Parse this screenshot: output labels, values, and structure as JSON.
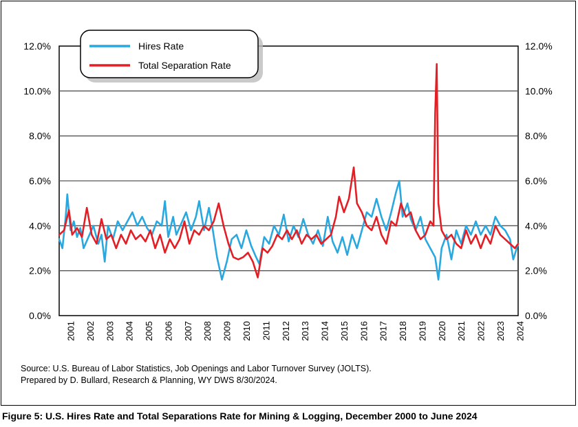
{
  "caption": "Figure 5: U.S. Hires Rate and Total Separations Rate for Mining & Logging, December 2000 to June 2024",
  "source_lines": [
    "Source: U.S. Bureau of Labor Statistics, Job Openings and Labor Turnover Survey (JOLTS).",
    "Prepared by D. Bullard, Research & Planning, WY DWS 8/30/2024."
  ],
  "chart_data": {
    "type": "line",
    "title": "",
    "xlabel": "",
    "ylabel": "",
    "ylim": [
      0,
      12
    ],
    "yticks": [
      "0.0%",
      "2.0%",
      "4.0%",
      "6.0%",
      "8.0%",
      "10.0%",
      "12.0%"
    ],
    "right_axis_duplicate": true,
    "grid": "horizontal",
    "legend_placement": "top-left",
    "x_range": [
      "2000-12",
      "2024-06"
    ],
    "x_tick_labels": [
      "2001",
      "2002",
      "2003",
      "2004",
      "2005",
      "2006",
      "2007",
      "2008",
      "2009",
      "2010",
      "2011",
      "2012",
      "2013",
      "2014",
      "2015",
      "2016",
      "2017",
      "2018",
      "2019",
      "2020",
      "2021",
      "2022",
      "2023",
      "2024"
    ],
    "series_colors": {
      "hires": "#29a8e0",
      "separations": "#e31e24"
    },
    "series": [
      {
        "name": "Hires Rate",
        "color": "#29a8e0",
        "points": [
          [
            "2000-12",
            3.4
          ],
          [
            "2001-02",
            3.0
          ],
          [
            "2001-04",
            4.4
          ],
          [
            "2001-05",
            5.4
          ],
          [
            "2001-07",
            3.8
          ],
          [
            "2001-09",
            4.2
          ],
          [
            "2001-11",
            3.5
          ],
          [
            "2002-01",
            3.9
          ],
          [
            "2002-03",
            3.0
          ],
          [
            "2002-06",
            3.5
          ],
          [
            "2002-09",
            4.0
          ],
          [
            "2002-12",
            3.2
          ],
          [
            "2003-02",
            3.6
          ],
          [
            "2003-04",
            2.4
          ],
          [
            "2003-06",
            4.0
          ],
          [
            "2003-09",
            3.4
          ],
          [
            "2003-12",
            4.2
          ],
          [
            "2004-03",
            3.8
          ],
          [
            "2004-06",
            4.2
          ],
          [
            "2004-09",
            4.6
          ],
          [
            "2004-12",
            4.0
          ],
          [
            "2005-03",
            4.4
          ],
          [
            "2005-06",
            3.9
          ],
          [
            "2005-09",
            3.6
          ],
          [
            "2005-12",
            4.2
          ],
          [
            "2006-03",
            4.0
          ],
          [
            "2006-05",
            5.1
          ],
          [
            "2006-07",
            3.5
          ],
          [
            "2006-10",
            4.4
          ],
          [
            "2006-12",
            3.6
          ],
          [
            "2007-03",
            4.1
          ],
          [
            "2007-06",
            4.6
          ],
          [
            "2007-09",
            3.8
          ],
          [
            "2007-12",
            4.4
          ],
          [
            "2008-02",
            5.1
          ],
          [
            "2008-05",
            3.8
          ],
          [
            "2008-08",
            4.8
          ],
          [
            "2008-10",
            4.0
          ],
          [
            "2009-01",
            2.6
          ],
          [
            "2009-04",
            1.6
          ],
          [
            "2009-07",
            2.4
          ],
          [
            "2009-10",
            3.4
          ],
          [
            "2010-01",
            3.6
          ],
          [
            "2010-04",
            3.0
          ],
          [
            "2010-07",
            3.8
          ],
          [
            "2010-10",
            3.1
          ],
          [
            "2011-01",
            2.6
          ],
          [
            "2011-03",
            2.3
          ],
          [
            "2011-06",
            3.5
          ],
          [
            "2011-09",
            3.2
          ],
          [
            "2011-12",
            4.0
          ],
          [
            "2012-03",
            3.6
          ],
          [
            "2012-06",
            4.5
          ],
          [
            "2012-09",
            3.3
          ],
          [
            "2012-12",
            4.0
          ],
          [
            "2013-03",
            3.5
          ],
          [
            "2013-06",
            4.3
          ],
          [
            "2013-09",
            3.6
          ],
          [
            "2013-12",
            3.2
          ],
          [
            "2014-03",
            3.8
          ],
          [
            "2014-06",
            3.1
          ],
          [
            "2014-09",
            4.4
          ],
          [
            "2014-12",
            3.3
          ],
          [
            "2015-03",
            2.8
          ],
          [
            "2015-06",
            3.5
          ],
          [
            "2015-09",
            2.7
          ],
          [
            "2015-12",
            3.6
          ],
          [
            "2016-03",
            3.0
          ],
          [
            "2016-06",
            3.8
          ],
          [
            "2016-09",
            4.6
          ],
          [
            "2016-12",
            4.4
          ],
          [
            "2017-03",
            5.2
          ],
          [
            "2017-06",
            4.4
          ],
          [
            "2017-09",
            3.8
          ],
          [
            "2017-12",
            4.6
          ],
          [
            "2018-03",
            5.5
          ],
          [
            "2018-05",
            6.0
          ],
          [
            "2018-07",
            4.4
          ],
          [
            "2018-10",
            5.0
          ],
          [
            "2018-12",
            4.3
          ],
          [
            "2019-03",
            3.8
          ],
          [
            "2019-06",
            4.4
          ],
          [
            "2019-09",
            3.4
          ],
          [
            "2019-12",
            3.0
          ],
          [
            "2020-03",
            2.6
          ],
          [
            "2020-05",
            1.6
          ],
          [
            "2020-07",
            3.0
          ],
          [
            "2020-10",
            3.6
          ],
          [
            "2021-01",
            2.5
          ],
          [
            "2021-04",
            3.8
          ],
          [
            "2021-07",
            3.2
          ],
          [
            "2021-10",
            4.0
          ],
          [
            "2022-01",
            3.6
          ],
          [
            "2022-04",
            4.2
          ],
          [
            "2022-07",
            3.6
          ],
          [
            "2022-10",
            4.0
          ],
          [
            "2023-01",
            3.6
          ],
          [
            "2023-04",
            4.4
          ],
          [
            "2023-07",
            4.0
          ],
          [
            "2023-10",
            3.8
          ],
          [
            "2024-01",
            3.4
          ],
          [
            "2024-03",
            2.5
          ],
          [
            "2024-06",
            3.2
          ]
        ]
      },
      {
        "name": "Total Separation Rate",
        "color": "#e31e24",
        "points": [
          [
            "2000-12",
            3.6
          ],
          [
            "2001-03",
            3.8
          ],
          [
            "2001-06",
            4.7
          ],
          [
            "2001-08",
            3.6
          ],
          [
            "2001-11",
            3.9
          ],
          [
            "2002-02",
            3.5
          ],
          [
            "2002-05",
            4.8
          ],
          [
            "2002-08",
            3.6
          ],
          [
            "2002-11",
            3.2
          ],
          [
            "2003-02",
            4.3
          ],
          [
            "2003-05",
            3.4
          ],
          [
            "2003-08",
            3.6
          ],
          [
            "2003-11",
            3.0
          ],
          [
            "2004-02",
            3.6
          ],
          [
            "2004-05",
            3.2
          ],
          [
            "2004-08",
            3.8
          ],
          [
            "2004-11",
            3.4
          ],
          [
            "2005-02",
            3.6
          ],
          [
            "2005-05",
            3.3
          ],
          [
            "2005-08",
            3.8
          ],
          [
            "2005-11",
            3.0
          ],
          [
            "2006-02",
            3.6
          ],
          [
            "2006-05",
            2.8
          ],
          [
            "2006-08",
            3.4
          ],
          [
            "2006-11",
            3.0
          ],
          [
            "2007-02",
            3.4
          ],
          [
            "2007-05",
            4.2
          ],
          [
            "2007-08",
            3.2
          ],
          [
            "2007-11",
            3.8
          ],
          [
            "2008-02",
            3.6
          ],
          [
            "2008-05",
            4.0
          ],
          [
            "2008-08",
            3.8
          ],
          [
            "2008-11",
            4.2
          ],
          [
            "2009-02",
            5.0
          ],
          [
            "2009-05",
            4.0
          ],
          [
            "2009-08",
            3.2
          ],
          [
            "2009-11",
            2.6
          ],
          [
            "2010-02",
            2.5
          ],
          [
            "2010-05",
            2.6
          ],
          [
            "2010-08",
            2.8
          ],
          [
            "2010-11",
            2.4
          ],
          [
            "2011-02",
            1.7
          ],
          [
            "2011-05",
            3.0
          ],
          [
            "2011-08",
            2.8
          ],
          [
            "2011-11",
            3.1
          ],
          [
            "2012-02",
            3.6
          ],
          [
            "2012-05",
            3.4
          ],
          [
            "2012-08",
            3.8
          ],
          [
            "2012-11",
            3.4
          ],
          [
            "2013-02",
            3.8
          ],
          [
            "2013-05",
            3.2
          ],
          [
            "2013-08",
            3.6
          ],
          [
            "2013-11",
            3.4
          ],
          [
            "2014-02",
            3.6
          ],
          [
            "2014-05",
            3.2
          ],
          [
            "2014-08",
            3.4
          ],
          [
            "2014-11",
            3.6
          ],
          [
            "2015-02",
            4.4
          ],
          [
            "2015-04",
            5.3
          ],
          [
            "2015-07",
            4.6
          ],
          [
            "2015-10",
            5.2
          ],
          [
            "2016-01",
            6.6
          ],
          [
            "2016-03",
            5.0
          ],
          [
            "2016-06",
            4.6
          ],
          [
            "2016-09",
            4.0
          ],
          [
            "2016-12",
            3.8
          ],
          [
            "2017-03",
            4.4
          ],
          [
            "2017-06",
            3.6
          ],
          [
            "2017-09",
            3.2
          ],
          [
            "2017-12",
            4.2
          ],
          [
            "2018-03",
            4.0
          ],
          [
            "2018-06",
            5.0
          ],
          [
            "2018-09",
            4.4
          ],
          [
            "2018-12",
            4.6
          ],
          [
            "2019-03",
            3.8
          ],
          [
            "2019-06",
            3.4
          ],
          [
            "2019-09",
            3.6
          ],
          [
            "2019-12",
            4.2
          ],
          [
            "2020-02",
            4.0
          ],
          [
            "2020-03",
            9.0
          ],
          [
            "2020-04",
            11.2
          ],
          [
            "2020-05",
            5.0
          ],
          [
            "2020-07",
            3.8
          ],
          [
            "2020-10",
            3.4
          ],
          [
            "2021-01",
            3.6
          ],
          [
            "2021-04",
            3.2
          ],
          [
            "2021-07",
            3.0
          ],
          [
            "2021-10",
            3.8
          ],
          [
            "2022-01",
            3.2
          ],
          [
            "2022-04",
            3.6
          ],
          [
            "2022-07",
            3.0
          ],
          [
            "2022-10",
            3.6
          ],
          [
            "2023-01",
            3.2
          ],
          [
            "2023-04",
            4.0
          ],
          [
            "2023-07",
            3.6
          ],
          [
            "2023-10",
            3.4
          ],
          [
            "2024-01",
            3.2
          ],
          [
            "2024-04",
            3.0
          ],
          [
            "2024-06",
            3.2
          ]
        ]
      }
    ]
  }
}
